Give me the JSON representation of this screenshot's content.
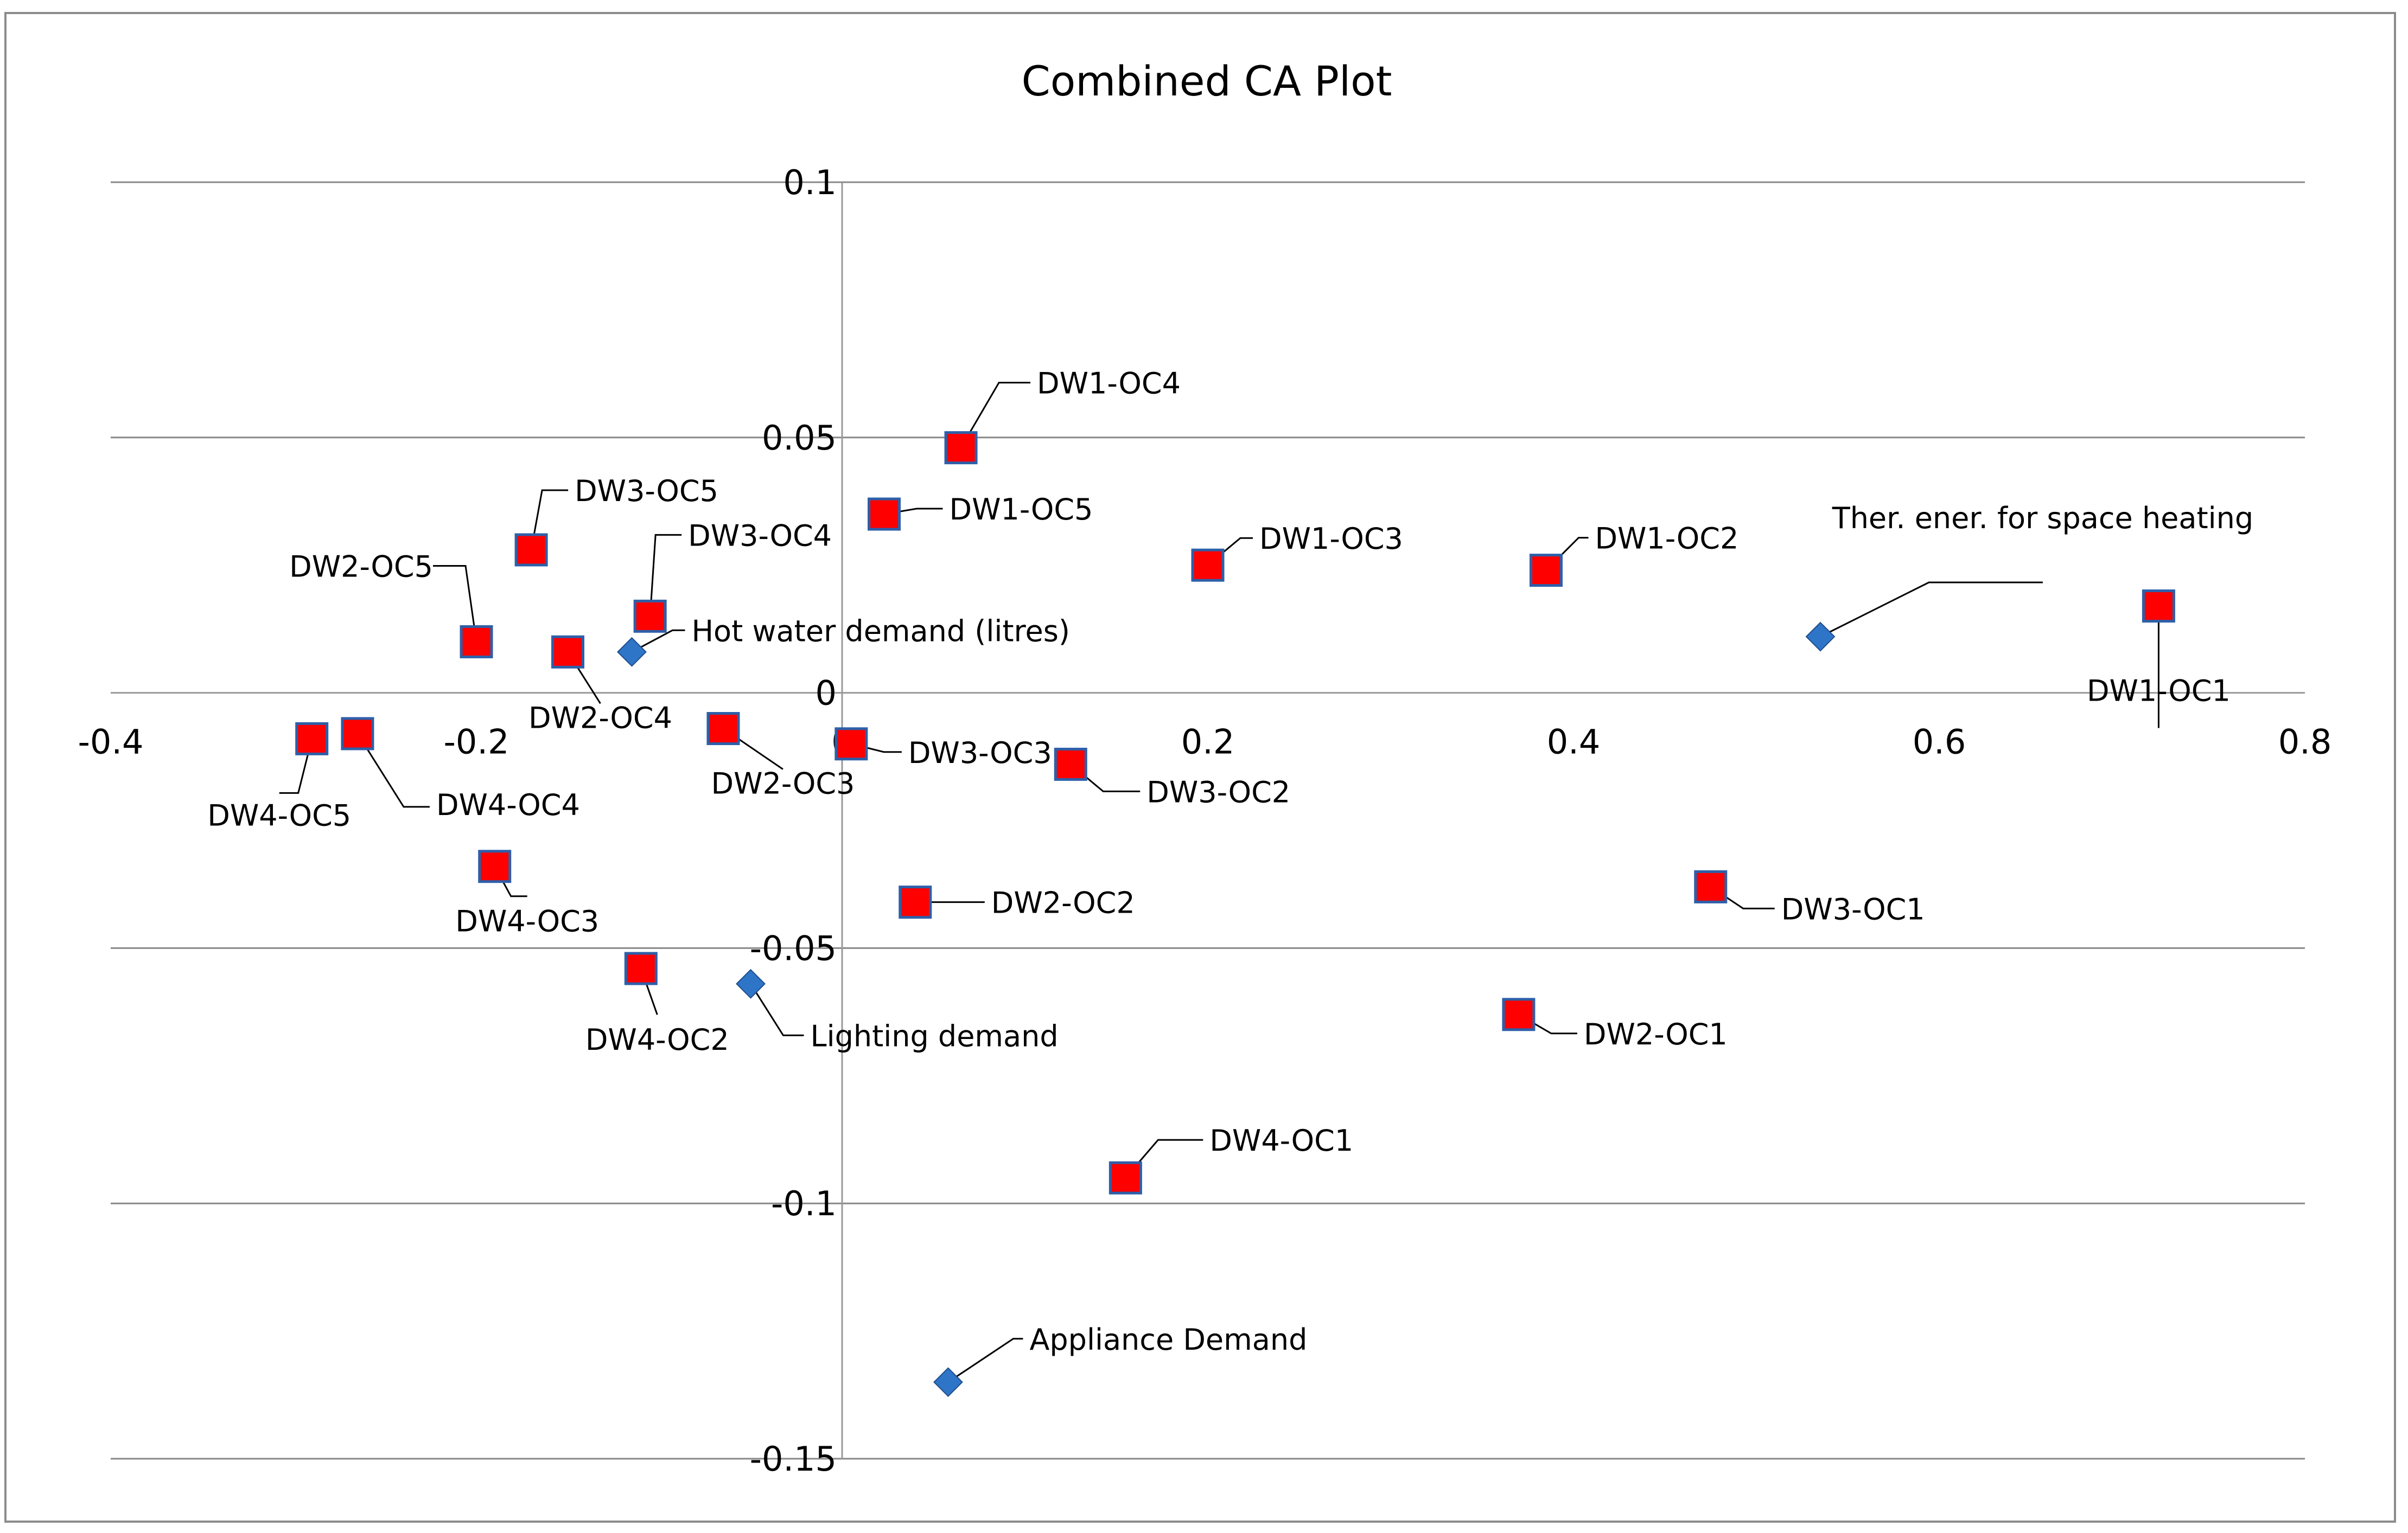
{
  "chart_data": {
    "type": "scatter",
    "title": "Combined CA Plot",
    "xlabel": "",
    "ylabel": "",
    "xlim": [
      -0.4,
      0.8
    ],
    "ylim": [
      -0.15,
      0.1
    ],
    "x_ticks": [
      -0.4,
      -0.2,
      0,
      0.2,
      0.4,
      0.6,
      0.8
    ],
    "x_tick_labels": [
      "-0.4",
      "-0.2",
      "0",
      "0.2",
      "0.4",
      "0.6",
      "0.8"
    ],
    "y_ticks": [
      -0.15,
      -0.1,
      -0.05,
      0,
      0.05,
      0.1
    ],
    "y_tick_labels": [
      "-0.15",
      "-0.1",
      "-0.05",
      "0",
      "0.05",
      "0.1"
    ],
    "grid": "horizontal",
    "legend": "none",
    "series": [
      {
        "marker": "square",
        "color": "#ff0000",
        "edge_color": "#2e5fa8",
        "points": [
          {
            "label": "DW1-OC1",
            "x": 0.72,
            "y": 0.017
          },
          {
            "label": "DW1-OC2",
            "x": 0.385,
            "y": 0.024
          },
          {
            "label": "DW1-OC3",
            "x": 0.2,
            "y": 0.025
          },
          {
            "label": "DW1-OC4",
            "x": 0.065,
            "y": 0.048
          },
          {
            "label": "DW1-OC5",
            "x": 0.023,
            "y": 0.035
          },
          {
            "label": "DW2-OC1",
            "x": 0.37,
            "y": -0.063
          },
          {
            "label": "DW2-OC2",
            "x": 0.04,
            "y": -0.041
          },
          {
            "label": "DW2-OC3",
            "x": -0.065,
            "y": -0.007
          },
          {
            "label": "DW2-OC4",
            "x": -0.15,
            "y": 0.008
          },
          {
            "label": "DW2-OC5",
            "x": -0.2,
            "y": 0.01
          },
          {
            "label": "DW3-OC1",
            "x": 0.475,
            "y": -0.038
          },
          {
            "label": "DW3-OC2",
            "x": 0.125,
            "y": -0.014
          },
          {
            "label": "DW3-OC3",
            "x": 0.005,
            "y": -0.01
          },
          {
            "label": "DW3-OC4",
            "x": -0.105,
            "y": 0.015
          },
          {
            "label": "DW3-OC5",
            "x": -0.17,
            "y": 0.028
          },
          {
            "label": "DW4-OC1",
            "x": 0.155,
            "y": -0.095
          },
          {
            "label": "DW4-OC2",
            "x": -0.11,
            "y": -0.054
          },
          {
            "label": "DW4-OC3",
            "x": -0.19,
            "y": -0.034
          },
          {
            "label": "DW4-OC4",
            "x": -0.265,
            "y": -0.008
          },
          {
            "label": "DW4-OC5",
            "x": -0.29,
            "y": -0.009
          }
        ]
      },
      {
        "marker": "diamond",
        "color": "#2e75c8",
        "points": [
          {
            "label": "Ther. ener. for space heating",
            "x": 0.535,
            "y": 0.011
          },
          {
            "label": "Hot water demand (litres)",
            "x": -0.115,
            "y": 0.008
          },
          {
            "label": "Lighting demand",
            "x": -0.05,
            "y": -0.057
          },
          {
            "label": "Appliance Demand",
            "x": 0.058,
            "y": -0.135
          }
        ]
      }
    ]
  }
}
